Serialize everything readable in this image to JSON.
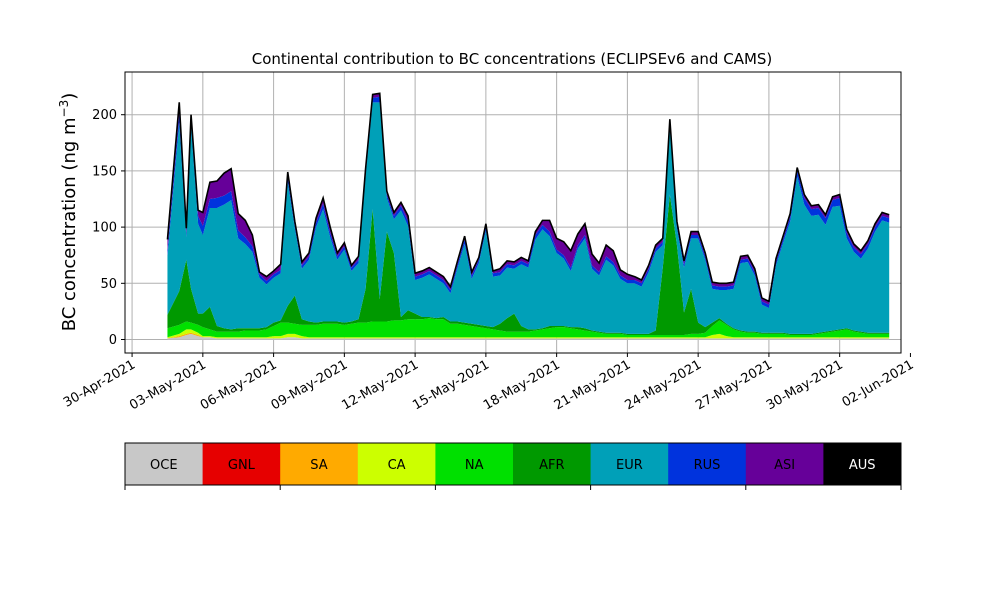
{
  "chart_data": {
    "type": "area",
    "stacked": true,
    "title": "Continental contribution to BC concentrations (ECLIPSEv6 and CAMS)",
    "ylabel": "BC concentration (ng m",
    "ylabel_sup": "−3",
    "ylabel_close": ")",
    "xlabel": "",
    "ylim": [
      -12,
      238
    ],
    "yticks": [
      0,
      50,
      100,
      150,
      200
    ],
    "x_day_range": [
      -0.3,
      32.6
    ],
    "xticks": [
      {
        "day": 0,
        "label": "30-Apr-2021"
      },
      {
        "day": 3,
        "label": "03-May-2021"
      },
      {
        "day": 6,
        "label": "06-May-2021"
      },
      {
        "day": 9,
        "label": "09-May-2021"
      },
      {
        "day": 12,
        "label": "12-May-2021"
      },
      {
        "day": 15,
        "label": "15-May-2021"
      },
      {
        "day": 18,
        "label": "18-May-2021"
      },
      {
        "day": 21,
        "label": "21-May-2021"
      },
      {
        "day": 24,
        "label": "24-May-2021"
      },
      {
        "day": 27,
        "label": "27-May-2021"
      },
      {
        "day": 30,
        "label": "30-May-2021"
      },
      {
        "day": 33,
        "label": "02-Jun-2021"
      }
    ],
    "grid": true,
    "total_line_color": "#000000",
    "series": [
      {
        "name": "OCE",
        "color": "#c8c8c8"
      },
      {
        "name": "GNL",
        "color": "#e60000"
      },
      {
        "name": "SA",
        "color": "#ffaa00"
      },
      {
        "name": "CA",
        "color": "#ccff00"
      },
      {
        "name": "NA",
        "color": "#00e000"
      },
      {
        "name": "AFR",
        "color": "#009900"
      },
      {
        "name": "EUR",
        "color": "#00a0b8"
      },
      {
        "name": "RUS",
        "color": "#0033dd"
      },
      {
        "name": "ASI",
        "color": "#660099"
      },
      {
        "name": "AUS",
        "color": "#000000"
      }
    ],
    "x_days": [
      1.5,
      2.0,
      2.3,
      2.5,
      2.8,
      3.0,
      3.3,
      3.6,
      3.9,
      4.2,
      4.5,
      4.8,
      5.1,
      5.4,
      5.7,
      6.0,
      6.3,
      6.6,
      6.9,
      7.2,
      7.5,
      7.8,
      8.1,
      8.4,
      8.7,
      9.0,
      9.3,
      9.6,
      9.9,
      10.2,
      10.5,
      10.8,
      11.1,
      11.4,
      11.7,
      12.0,
      12.3,
      12.6,
      12.9,
      13.2,
      13.5,
      13.8,
      14.1,
      14.4,
      14.7,
      15.0,
      15.3,
      15.6,
      15.9,
      16.2,
      16.5,
      16.8,
      17.1,
      17.4,
      17.7,
      18.0,
      18.3,
      18.6,
      18.9,
      19.2,
      19.5,
      19.8,
      20.1,
      20.4,
      20.7,
      21.0,
      21.3,
      21.6,
      21.9,
      22.2,
      22.5,
      22.8,
      23.1,
      23.4,
      23.7,
      24.0,
      24.3,
      24.6,
      24.9,
      25.2,
      25.5,
      25.8,
      26.1,
      26.4,
      26.7,
      27.0,
      27.3,
      27.6,
      27.9,
      28.2,
      28.5,
      28.8,
      29.1,
      29.4,
      29.7,
      30.0,
      30.3,
      30.6,
      30.9,
      31.2,
      31.5,
      31.8,
      32.1
    ],
    "stacks": {
      "OCE": [
        1,
        2,
        4,
        5,
        3,
        2,
        2,
        1,
        1,
        1,
        1,
        1,
        1,
        1,
        1,
        1,
        1,
        2,
        2,
        1,
        1,
        1,
        1,
        1,
        1,
        1,
        1,
        1,
        1,
        1,
        1,
        1,
        1,
        1,
        1,
        1,
        1,
        1,
        1,
        1,
        1,
        1,
        1,
        1,
        1,
        1,
        1,
        1,
        1,
        1,
        1,
        1,
        1,
        1,
        1,
        1,
        1,
        1,
        1,
        1,
        1,
        1,
        1,
        1,
        1,
        1,
        1,
        1,
        1,
        1,
        1,
        1,
        1,
        1,
        1,
        1,
        1,
        1,
        1,
        1,
        1,
        1,
        1,
        1,
        1,
        1,
        1,
        1,
        1,
        1,
        1,
        1,
        1,
        1,
        1,
        1,
        1,
        1,
        1,
        1,
        1,
        1,
        1
      ],
      "GNL": [
        0,
        0,
        0,
        0,
        0,
        0,
        0,
        0,
        0,
        0,
        0,
        0,
        0,
        0,
        0,
        0,
        0,
        0,
        0,
        0,
        0,
        0,
        0,
        0,
        0,
        0,
        0,
        0,
        0,
        0,
        0,
        0,
        0,
        0,
        0,
        0,
        0,
        0,
        0,
        0,
        0,
        0,
        0,
        0,
        0,
        0,
        0,
        0,
        0,
        0,
        0,
        0,
        0,
        0,
        0,
        0,
        0,
        0,
        0,
        0,
        0,
        0,
        0,
        0,
        0,
        0,
        0,
        0,
        0,
        0,
        0,
        0,
        0,
        0,
        0,
        0,
        0,
        0,
        0,
        0,
        0,
        0,
        0,
        0,
        0,
        0,
        0,
        0,
        0,
        0,
        0,
        0,
        0,
        0,
        0,
        0,
        0,
        0,
        0,
        0,
        0,
        0,
        0
      ],
      "SA": [
        0,
        1,
        1,
        1,
        1,
        0,
        0,
        0,
        0,
        0,
        0,
        0,
        0,
        0,
        0,
        0,
        0,
        0,
        0,
        0,
        0,
        0,
        0,
        0,
        0,
        0,
        0,
        0,
        0,
        0,
        0,
        0,
        0,
        0,
        0,
        0,
        0,
        0,
        0,
        0,
        0,
        0,
        0,
        0,
        0,
        0,
        0,
        0,
        0,
        0,
        0,
        0,
        0,
        0,
        0,
        0,
        0,
        0,
        0,
        0,
        0,
        0,
        0,
        0,
        0,
        0,
        0,
        0,
        0,
        0,
        0,
        0,
        0,
        0,
        0,
        0,
        0,
        0,
        0,
        0,
        0,
        0,
        0,
        0,
        0,
        0,
        0,
        0,
        0,
        0,
        0,
        0,
        0,
        0,
        0,
        0,
        0,
        0,
        0,
        0,
        0,
        0,
        0
      ],
      "CA": [
        1,
        2,
        4,
        3,
        2,
        1,
        1,
        1,
        1,
        1,
        1,
        1,
        1,
        1,
        1,
        2,
        2,
        3,
        3,
        2,
        1,
        1,
        1,
        1,
        1,
        1,
        1,
        1,
        1,
        1,
        1,
        1,
        1,
        1,
        1,
        1,
        1,
        1,
        1,
        1,
        1,
        1,
        1,
        1,
        1,
        1,
        1,
        1,
        1,
        1,
        1,
        1,
        1,
        1,
        1,
        1,
        1,
        1,
        1,
        1,
        1,
        1,
        1,
        1,
        1,
        1,
        1,
        1,
        1,
        1,
        1,
        1,
        1,
        1,
        1,
        1,
        1,
        3,
        4,
        2,
        1,
        1,
        1,
        1,
        1,
        1,
        1,
        1,
        1,
        1,
        1,
        1,
        1,
        1,
        1,
        1,
        1,
        1,
        1,
        1,
        1,
        1,
        1
      ],
      "NA": [
        8,
        8,
        7,
        6,
        7,
        8,
        6,
        5,
        5,
        5,
        5,
        6,
        6,
        6,
        7,
        9,
        12,
        10,
        9,
        10,
        11,
        11,
        12,
        12,
        12,
        11,
        12,
        13,
        13,
        14,
        14,
        14,
        15,
        15,
        16,
        16,
        16,
        17,
        16,
        16,
        12,
        12,
        11,
        10,
        9,
        8,
        7,
        6,
        5,
        5,
        5,
        5,
        6,
        7,
        8,
        9,
        9,
        8,
        7,
        6,
        5,
        4,
        3,
        3,
        3,
        2,
        2,
        2,
        2,
        2,
        2,
        2,
        2,
        2,
        3,
        3,
        4,
        8,
        12,
        10,
        7,
        5,
        4,
        4,
        3,
        3,
        3,
        3,
        2,
        2,
        2,
        2,
        3,
        4,
        5,
        6,
        7,
        5,
        4,
        3,
        3,
        3,
        3
      ],
      "AFR": [
        12,
        30,
        55,
        30,
        10,
        12,
        20,
        5,
        3,
        2,
        3,
        2,
        2,
        2,
        2,
        3,
        2,
        15,
        25,
        5,
        3,
        2,
        2,
        2,
        2,
        2,
        2,
        3,
        30,
        100,
        20,
        80,
        60,
        3,
        8,
        5,
        2,
        1,
        1,
        2,
        2,
        2,
        2,
        2,
        2,
        2,
        2,
        6,
        12,
        16,
        5,
        2,
        1,
        1,
        2,
        1,
        1,
        1,
        2,
        2,
        1,
        1,
        1,
        1,
        1,
        1,
        1,
        1,
        1,
        4,
        60,
        125,
        80,
        20,
        40,
        10,
        5,
        3,
        2,
        1,
        1,
        1,
        1,
        1,
        1,
        1,
        1,
        1,
        1,
        1,
        1,
        1,
        1,
        1,
        1,
        1,
        1,
        1,
        1,
        1,
        1,
        1,
        1
      ],
      "EUR": [
        52,
        150,
        20,
        145,
        80,
        70,
        88,
        105,
        110,
        115,
        80,
        75,
        68,
        45,
        38,
        40,
        42,
        110,
        60,
        45,
        55,
        85,
        100,
        75,
        55,
        65,
        45,
        50,
        100,
        95,
        175,
        30,
        30,
        95,
        75,
        30,
        35,
        38,
        35,
        30,
        25,
        48,
        70,
        40,
        55,
        85,
        45,
        43,
        45,
        40,
        55,
        55,
        80,
        88,
        80,
        65,
        60,
        50,
        70,
        80,
        55,
        50,
        65,
        60,
        48,
        45,
        45,
        42,
        55,
        70,
        20,
        60,
        15,
        40,
        45,
        75,
        60,
        30,
        25,
        30,
        35,
        60,
        62,
        50,
        25,
        22,
        60,
        80,
        100,
        140,
        115,
        105,
        105,
        95,
        110,
        110,
        80,
        70,
        65,
        75,
        90,
        100,
        98
      ],
      "RUS": [
        5,
        8,
        3,
        7,
        7,
        8,
        8,
        9,
        8,
        8,
        7,
        6,
        5,
        3,
        3,
        3,
        3,
        4,
        3,
        3,
        3,
        4,
        5,
        4,
        3,
        3,
        3,
        3,
        4,
        4,
        5,
        3,
        3,
        4,
        4,
        3,
        3,
        3,
        3,
        3,
        3,
        3,
        4,
        3,
        3,
        4,
        3,
        3,
        3,
        3,
        3,
        3,
        4,
        4,
        4,
        3,
        3,
        3,
        3,
        3,
        3,
        3,
        3,
        3,
        3,
        3,
        3,
        3,
        3,
        3,
        3,
        4,
        3,
        3,
        3,
        3,
        3,
        3,
        3,
        3,
        3,
        3,
        3,
        3,
        3,
        3,
        3,
        3,
        4,
        5,
        6,
        6,
        6,
        6,
        6,
        7,
        5,
        4,
        4,
        4,
        4,
        4,
        4
      ],
      "ASI": [
        10,
        10,
        5,
        3,
        5,
        12,
        15,
        15,
        20,
        20,
        15,
        15,
        10,
        2,
        4,
        3,
        5,
        5,
        3,
        3,
        3,
        4,
        5,
        5,
        3,
        3,
        2,
        3,
        3,
        3,
        3,
        3,
        3,
        3,
        5,
        3,
        3,
        3,
        3,
        3,
        3,
        3,
        3,
        3,
        2,
        2,
        2,
        3,
        3,
        3,
        3,
        3,
        3,
        4,
        10,
        10,
        12,
        15,
        10,
        10,
        10,
        8,
        10,
        10,
        5,
        5,
        3,
        3,
        3,
        3,
        3,
        3,
        3,
        3,
        3,
        3,
        3,
        3,
        3,
        3,
        3,
        3,
        3,
        3,
        3,
        3,
        3,
        3,
        3,
        3,
        3,
        3,
        3,
        3,
        3,
        3,
        3,
        3,
        3,
        3,
        3,
        3,
        3
      ],
      "AUS": [
        0,
        0,
        0,
        0,
        0,
        0,
        0,
        0,
        0,
        0,
        0,
        0,
        0,
        0,
        0,
        0,
        0,
        0,
        0,
        0,
        0,
        0,
        0,
        0,
        0,
        0,
        0,
        0,
        0,
        0,
        0,
        0,
        0,
        0,
        0,
        0,
        0,
        0,
        0,
        0,
        0,
        0,
        0,
        0,
        0,
        0,
        0,
        0,
        0,
        0,
        0,
        0,
        0,
        0,
        0,
        0,
        0,
        0,
        0,
        0,
        0,
        0,
        0,
        0,
        0,
        0,
        0,
        0,
        0,
        0,
        0,
        0,
        0,
        0,
        0,
        0,
        0,
        0,
        0,
        0,
        0,
        0,
        0,
        0,
        0,
        0,
        0,
        0,
        0,
        0,
        0,
        0,
        0,
        0,
        0,
        0,
        0,
        0,
        0,
        0,
        0,
        0,
        0
      ]
    }
  },
  "colorbar": {
    "labels": [
      "OCE",
      "GNL",
      "SA",
      "CA",
      "NA",
      "AFR",
      "EUR",
      "RUS",
      "ASI",
      "AUS"
    ],
    "label_colors": [
      "#000000",
      "#000000",
      "#000000",
      "#000000",
      "#000000",
      "#000000",
      "#000000",
      "#000000",
      "#000000",
      "#ffffff"
    ]
  }
}
